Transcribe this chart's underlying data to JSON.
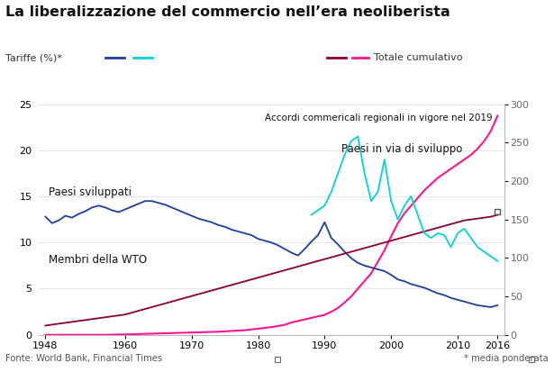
{
  "title": "La liberalizzazione del commercio nell’era neoliberista",
  "legend_left_label": "Tariffe (%)*",
  "legend_right_label": "Totale cumulativo",
  "footer_left": "Fonte: World Bank, Financial Times",
  "footer_right": "* media ponderata",
  "annotation_developed": "Paesi sviluppati",
  "annotation_wto": "Membri della WTO",
  "annotation_developing": "Paesi in via di sviluppo",
  "annotation_rta": "Accordi commericali regionali in vigore nel 2019",
  "ylim_left": [
    0,
    25
  ],
  "ylim_right": [
    0,
    300
  ],
  "yticks_left": [
    0,
    5,
    10,
    15,
    20,
    25
  ],
  "yticks_right": [
    0,
    50,
    100,
    150,
    200,
    250,
    300
  ],
  "xticks": [
    1948,
    1960,
    1970,
    1980,
    1990,
    2000,
    2010,
    2016
  ],
  "xlim": [
    1947,
    2017
  ],
  "color_developed": "#1a3fa0",
  "color_developing": "#00d4d4",
  "color_wto": "#8b0030",
  "color_rta": "#ff1493",
  "background": "#ffffff",
  "grid_color": "#e0e0e0",
  "developed_x": [
    1948,
    1949,
    1950,
    1951,
    1952,
    1953,
    1954,
    1955,
    1956,
    1957,
    1958,
    1959,
    1960,
    1961,
    1962,
    1963,
    1964,
    1965,
    1966,
    1967,
    1968,
    1969,
    1970,
    1971,
    1972,
    1973,
    1974,
    1975,
    1976,
    1977,
    1978,
    1979,
    1980,
    1981,
    1982,
    1983,
    1984,
    1985,
    1986,
    1987,
    1988,
    1989,
    1990,
    1991,
    1992,
    1993,
    1994,
    1995,
    1996,
    1997,
    1998,
    1999,
    2000,
    2001,
    2002,
    2003,
    2004,
    2005,
    2006,
    2007,
    2008,
    2009,
    2010,
    2011,
    2012,
    2013,
    2014,
    2015,
    2016
  ],
  "developed_y": [
    12.8,
    12.1,
    12.4,
    12.9,
    12.7,
    13.1,
    13.4,
    13.8,
    14.0,
    13.8,
    13.5,
    13.3,
    13.6,
    13.9,
    14.2,
    14.5,
    14.5,
    14.3,
    14.1,
    13.8,
    13.5,
    13.2,
    12.9,
    12.6,
    12.4,
    12.2,
    11.9,
    11.7,
    11.4,
    11.2,
    11.0,
    10.8,
    10.4,
    10.2,
    10.0,
    9.7,
    9.3,
    8.9,
    8.6,
    9.3,
    10.1,
    10.8,
    12.2,
    10.5,
    9.8,
    9.0,
    8.3,
    7.8,
    7.5,
    7.3,
    7.1,
    6.9,
    6.5,
    6.0,
    5.8,
    5.5,
    5.3,
    5.1,
    4.8,
    4.5,
    4.3,
    4.0,
    3.8,
    3.6,
    3.4,
    3.2,
    3.1,
    3.0,
    3.2
  ],
  "developing_x": [
    1988,
    1989,
    1990,
    1991,
    1992,
    1993,
    1994,
    1995,
    1996,
    1997,
    1998,
    1999,
    2000,
    2001,
    2002,
    2003,
    2004,
    2005,
    2006,
    2007,
    2008,
    2009,
    2010,
    2011,
    2012,
    2013,
    2014,
    2015,
    2016
  ],
  "developing_y": [
    13.0,
    13.5,
    14.0,
    15.5,
    17.5,
    19.5,
    21.0,
    21.5,
    17.5,
    14.5,
    15.5,
    19.0,
    14.5,
    12.5,
    14.0,
    15.0,
    13.0,
    11.0,
    10.5,
    11.0,
    10.8,
    9.5,
    11.0,
    11.5,
    10.5,
    9.5,
    9.0,
    8.5,
    8.0
  ],
  "wto_x": [
    1948,
    1949,
    1950,
    1951,
    1952,
    1953,
    1954,
    1955,
    1956,
    1957,
    1958,
    1959,
    1960,
    1961,
    1962,
    1963,
    1964,
    1965,
    1966,
    1967,
    1968,
    1969,
    1970,
    1971,
    1972,
    1973,
    1974,
    1975,
    1976,
    1977,
    1978,
    1979,
    1980,
    1981,
    1982,
    1983,
    1984,
    1985,
    1986,
    1987,
    1988,
    1989,
    1990,
    1991,
    1992,
    1993,
    1994,
    1995,
    1996,
    1997,
    1998,
    1999,
    2000,
    2001,
    2002,
    2003,
    2004,
    2005,
    2006,
    2007,
    2008,
    2009,
    2010,
    2011,
    2012,
    2013,
    2014,
    2015,
    2016
  ],
  "wto_y": [
    1.0,
    1.1,
    1.2,
    1.3,
    1.4,
    1.5,
    1.6,
    1.7,
    1.8,
    1.9,
    2.0,
    2.1,
    2.2,
    2.4,
    2.6,
    2.8,
    3.0,
    3.2,
    3.4,
    3.6,
    3.8,
    4.0,
    4.2,
    4.4,
    4.6,
    4.8,
    5.0,
    5.2,
    5.4,
    5.6,
    5.8,
    6.0,
    6.2,
    6.4,
    6.6,
    6.8,
    7.0,
    7.2,
    7.4,
    7.6,
    7.8,
    8.0,
    8.2,
    8.4,
    8.6,
    8.8,
    9.0,
    9.2,
    9.4,
    9.6,
    9.8,
    10.0,
    10.2,
    10.4,
    10.6,
    10.8,
    11.0,
    11.2,
    11.4,
    11.6,
    11.8,
    12.0,
    12.2,
    12.4,
    12.5,
    12.6,
    12.7,
    12.8,
    13.0
  ],
  "rta_x": [
    1948,
    1950,
    1955,
    1957,
    1960,
    1962,
    1964,
    1966,
    1968,
    1970,
    1972,
    1974,
    1976,
    1978,
    1980,
    1982,
    1984,
    1985,
    1986,
    1987,
    1988,
    1989,
    1990,
    1991,
    1992,
    1993,
    1994,
    1995,
    1996,
    1997,
    1998,
    1999,
    2000,
    2001,
    2002,
    2003,
    2004,
    2005,
    2006,
    2007,
    2008,
    2009,
    2010,
    2011,
    2012,
    2013,
    2014,
    2015,
    2016
  ],
  "rta_y": [
    0,
    0,
    0,
    0,
    0.5,
    1.0,
    1.5,
    2.0,
    2.5,
    3.0,
    3.5,
    4.0,
    5.0,
    6.0,
    8.0,
    10.0,
    13.0,
    16.0,
    18.0,
    20.0,
    22.0,
    24.0,
    26.0,
    30.0,
    35.0,
    42.0,
    50.0,
    60.0,
    70.0,
    80.0,
    95.0,
    110.0,
    128.0,
    145.0,
    158.0,
    168.0,
    178.0,
    188.0,
    196.0,
    204.0,
    210.0,
    216.0,
    222.0,
    228.0,
    234.0,
    242.0,
    252.0,
    265.0,
    285.0
  ]
}
